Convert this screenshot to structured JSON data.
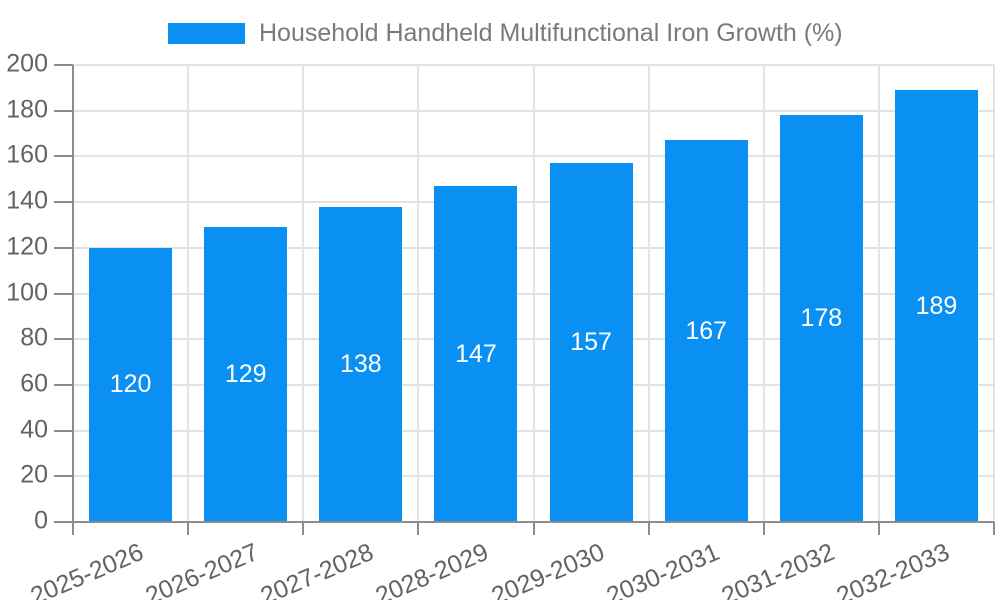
{
  "chart_data": {
    "type": "bar",
    "title": "Household Handheld Multifunctional Iron Growth (%)",
    "categories": [
      "2025-2026",
      "2026-2027",
      "2027-2028",
      "2028-2029",
      "2029-2030",
      "2030-2031",
      "2031-2032",
      "2032-2033"
    ],
    "values": [
      120,
      129,
      138,
      147,
      157,
      167,
      178,
      189
    ],
    "xlabel": "",
    "ylabel": "",
    "ylim": [
      0,
      200
    ],
    "ytick_step": 20,
    "grid": true,
    "legend_position": "top",
    "x_label_rotation_deg": -23
  },
  "legend": {
    "label": "Household Handheld Multifunctional Iron Growth (%)"
  },
  "colors": {
    "bar": "#0a90f2",
    "grid": "#e3e3e3",
    "axis": "#8c8c8c",
    "tick_text": "#636363",
    "legend_text": "#7a7a7a",
    "value_label": "#ffffff",
    "background": "#ffffff"
  }
}
